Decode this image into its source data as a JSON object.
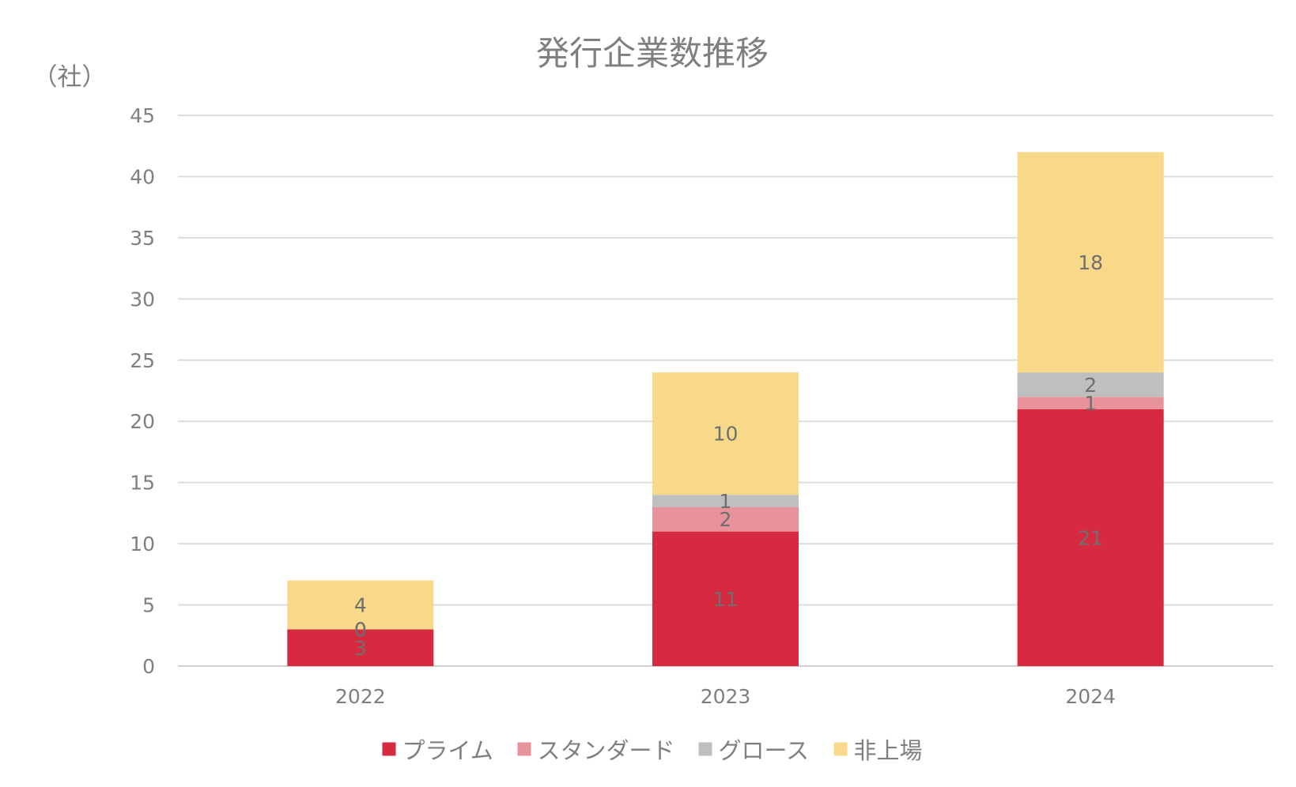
{
  "chart_data": {
    "type": "bar",
    "stacked": true,
    "title": "発行企業数推移",
    "ylabel": "（社）",
    "xlabel": "",
    "categories": [
      "2022",
      "2023",
      "2024"
    ],
    "ylim": [
      0,
      45
    ],
    "yticks": [
      0,
      5,
      10,
      15,
      20,
      25,
      30,
      35,
      40,
      45
    ],
    "grid": true,
    "legend_position": "bottom",
    "series": [
      {
        "name": "プライム",
        "color": "#d62a40",
        "values": [
          3,
          11,
          21
        ]
      },
      {
        "name": "スタンダード",
        "color": "#e8939c",
        "values": [
          0,
          2,
          1
        ]
      },
      {
        "name": "グロース",
        "color": "#bfbfbf",
        "values": [
          0,
          1,
          2
        ]
      },
      {
        "name": "非上場",
        "color": "#f8d98a",
        "values": [
          4,
          10,
          18
        ]
      }
    ]
  }
}
